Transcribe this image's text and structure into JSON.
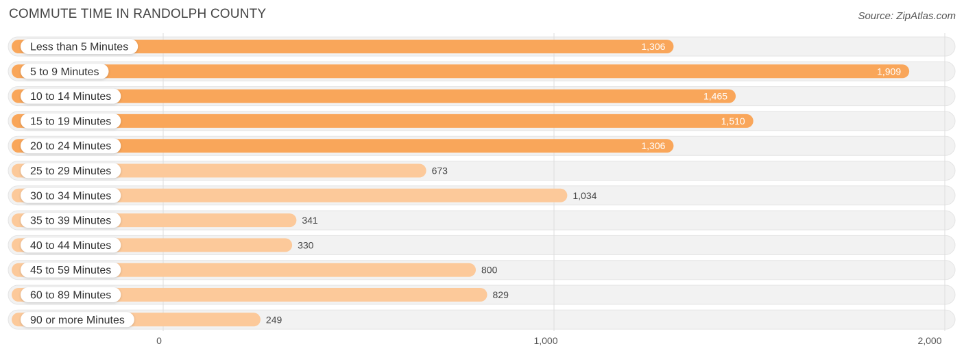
{
  "header": {
    "title": "COMMUTE TIME IN RANDOLPH COUNTY",
    "source": "Source: ZipAtlas.com"
  },
  "colors": {
    "bar_strong": "#f9a65a",
    "bar_light": "#fcc99a",
    "track": "#f2f2f2",
    "grid": "#dddddd"
  },
  "chart_data": {
    "type": "bar",
    "orientation": "horizontal",
    "categories": [
      "Less than 5 Minutes",
      "5 to 9 Minutes",
      "10 to 14 Minutes",
      "15 to 19 Minutes",
      "20 to 24 Minutes",
      "25 to 29 Minutes",
      "30 to 34 Minutes",
      "35 to 39 Minutes",
      "40 to 44 Minutes",
      "45 to 59 Minutes",
      "60 to 89 Minutes",
      "90 or more Minutes"
    ],
    "values": [
      1306,
      1909,
      1465,
      1510,
      1306,
      673,
      1034,
      341,
      330,
      800,
      829,
      249
    ],
    "value_labels": [
      "1,306",
      "1,909",
      "1,465",
      "1,510",
      "1,306",
      "673",
      "1,034",
      "341",
      "330",
      "800",
      "829",
      "249"
    ],
    "xlim": [
      0,
      2000
    ],
    "xticks": [
      0,
      1000,
      2000
    ],
    "xtick_labels": [
      "0",
      "1,000",
      "2,000"
    ],
    "grid": true,
    "legend": "none"
  }
}
